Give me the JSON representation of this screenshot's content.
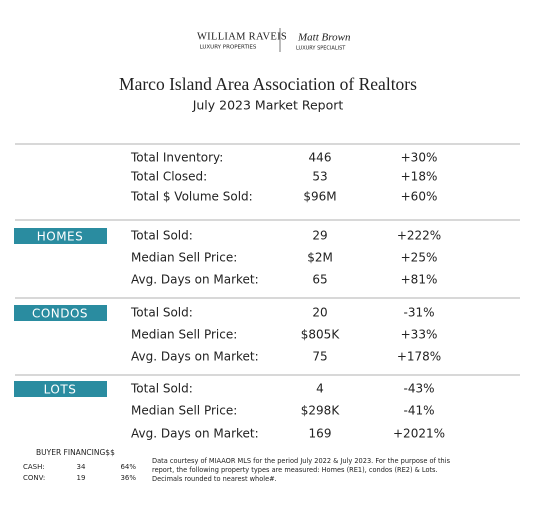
{
  "header": {
    "brand": "WILLIAM RAVEIS",
    "brand_sub": "LUXURY PROPERTIES",
    "agent": "Matt Brown",
    "agent_sub": "LUXURY SPECIALIST"
  },
  "title": "Marco Island Area Association of Realtors",
  "subtitle": "July 2023 Market Report",
  "sections": [
    {
      "rows": [
        [
          "Total Inventory:",
          "446",
          "+30%"
        ],
        [
          "Total Closed:",
          "53",
          "+18%"
        ],
        [
          "Total $ Volume Sold:",
          "$96M",
          "+60%"
        ]
      ]
    },
    {
      "label": "HOMES",
      "rows": [
        [
          "Total Sold:",
          "29",
          "+222%"
        ],
        [
          "Median Sell Price:",
          "$2M",
          "+25%"
        ],
        [
          "Avg. Days on Market:",
          "65",
          "+81%"
        ]
      ]
    },
    {
      "label": "CONDOS",
      "rows": [
        [
          "Total Sold:",
          "20",
          "-31%"
        ],
        [
          "Median Sell Price:",
          "$805K",
          "+33%"
        ],
        [
          "Avg. Days on Market:",
          "75",
          "+178%"
        ]
      ]
    },
    {
      "label": "LOTS",
      "rows": [
        [
          "Total Sold:",
          "4",
          "-43%"
        ],
        [
          "Median Sell Price:",
          "$298K",
          "-41%"
        ],
        [
          "Avg. Days on Market:",
          "169",
          "+2021%"
        ]
      ]
    }
  ],
  "financing": {
    "title": "BUYER FINANCING$$",
    "rows": [
      [
        "CASH:",
        "34",
        "64%"
      ],
      [
        "CONV:",
        "19",
        "36%"
      ]
    ]
  },
  "note": [
    "Data courtesy of MIAAOR MLS for the period July 2022 & July 2023. For the purpose of this",
    "report, the following property types are measured: Homes (RE1), condos (RE2) & Lots.",
    "Decimals rounded to nearest whole#."
  ]
}
